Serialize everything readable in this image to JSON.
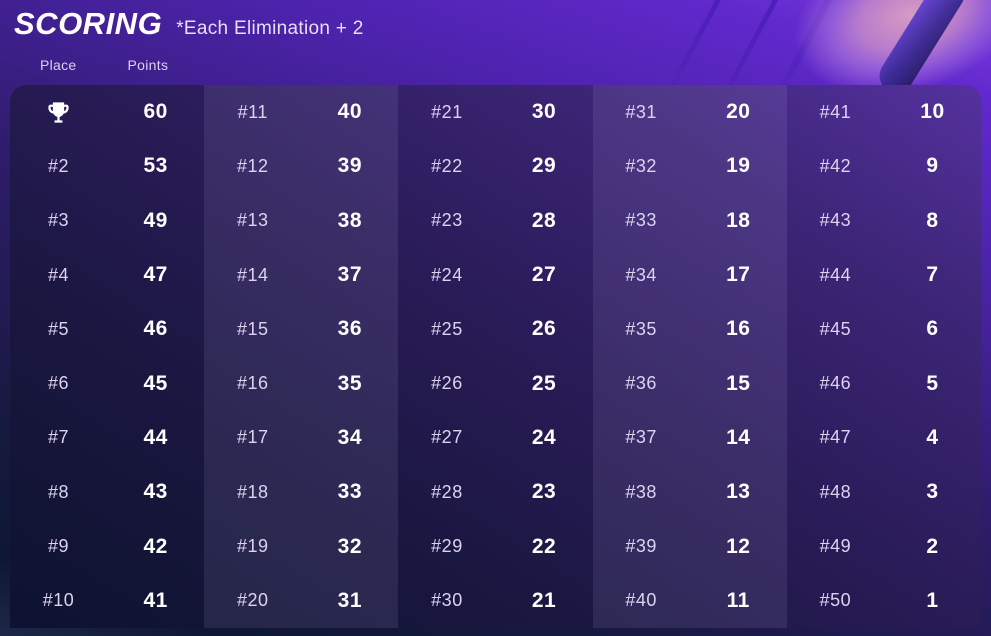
{
  "header": {
    "title": "SCORING",
    "subtitle": "*Each Elimination + 2",
    "place_label": "Place",
    "points_label": "Points"
  },
  "icons": {
    "first_place": "trophy-icon"
  },
  "colors": {
    "page_top": "#6129cd",
    "page_bottom": "#0e1734",
    "panel_top_right": "#55319f",
    "panel_bottom_left": "#0e1230",
    "light_column_overlay": "rgba(214,203,255,0.10)",
    "place_text": "#ddd3f1",
    "points_text": "#ffffff"
  },
  "table": {
    "columns": [
      {
        "entries": [
          {
            "place": "",
            "icon": "trophy",
            "points": "60"
          },
          {
            "place": "#2",
            "points": "53"
          },
          {
            "place": "#3",
            "points": "49"
          },
          {
            "place": "#4",
            "points": "47"
          },
          {
            "place": "#5",
            "points": "46"
          },
          {
            "place": "#6",
            "points": "45"
          },
          {
            "place": "#7",
            "points": "44"
          },
          {
            "place": "#8",
            "points": "43"
          },
          {
            "place": "#9",
            "points": "42"
          },
          {
            "place": "#10",
            "points": "41"
          }
        ]
      },
      {
        "entries": [
          {
            "place": "#11",
            "points": "40"
          },
          {
            "place": "#12",
            "points": "39"
          },
          {
            "place": "#13",
            "points": "38"
          },
          {
            "place": "#14",
            "points": "37"
          },
          {
            "place": "#15",
            "points": "36"
          },
          {
            "place": "#16",
            "points": "35"
          },
          {
            "place": "#17",
            "points": "34"
          },
          {
            "place": "#18",
            "points": "33"
          },
          {
            "place": "#19",
            "points": "32"
          },
          {
            "place": "#20",
            "points": "31"
          }
        ]
      },
      {
        "entries": [
          {
            "place": "#21",
            "points": "30"
          },
          {
            "place": "#22",
            "points": "29"
          },
          {
            "place": "#23",
            "points": "28"
          },
          {
            "place": "#24",
            "points": "27"
          },
          {
            "place": "#25",
            "points": "26"
          },
          {
            "place": "#26",
            "points": "25"
          },
          {
            "place": "#27",
            "points": "24"
          },
          {
            "place": "#28",
            "points": "23"
          },
          {
            "place": "#29",
            "points": "22"
          },
          {
            "place": "#30",
            "points": "21"
          }
        ]
      },
      {
        "entries": [
          {
            "place": "#31",
            "points": "20"
          },
          {
            "place": "#32",
            "points": "19"
          },
          {
            "place": "#33",
            "points": "18"
          },
          {
            "place": "#34",
            "points": "17"
          },
          {
            "place": "#35",
            "points": "16"
          },
          {
            "place": "#36",
            "points": "15"
          },
          {
            "place": "#37",
            "points": "14"
          },
          {
            "place": "#38",
            "points": "13"
          },
          {
            "place": "#39",
            "points": "12"
          },
          {
            "place": "#40",
            "points": "11"
          }
        ]
      },
      {
        "entries": [
          {
            "place": "#41",
            "points": "10"
          },
          {
            "place": "#42",
            "points": "9"
          },
          {
            "place": "#43",
            "points": "8"
          },
          {
            "place": "#44",
            "points": "7"
          },
          {
            "place": "#45",
            "points": "6"
          },
          {
            "place": "#46",
            "points": "5"
          },
          {
            "place": "#47",
            "points": "4"
          },
          {
            "place": "#48",
            "points": "3"
          },
          {
            "place": "#49",
            "points": "2"
          },
          {
            "place": "#50",
            "points": "1"
          }
        ]
      }
    ]
  }
}
